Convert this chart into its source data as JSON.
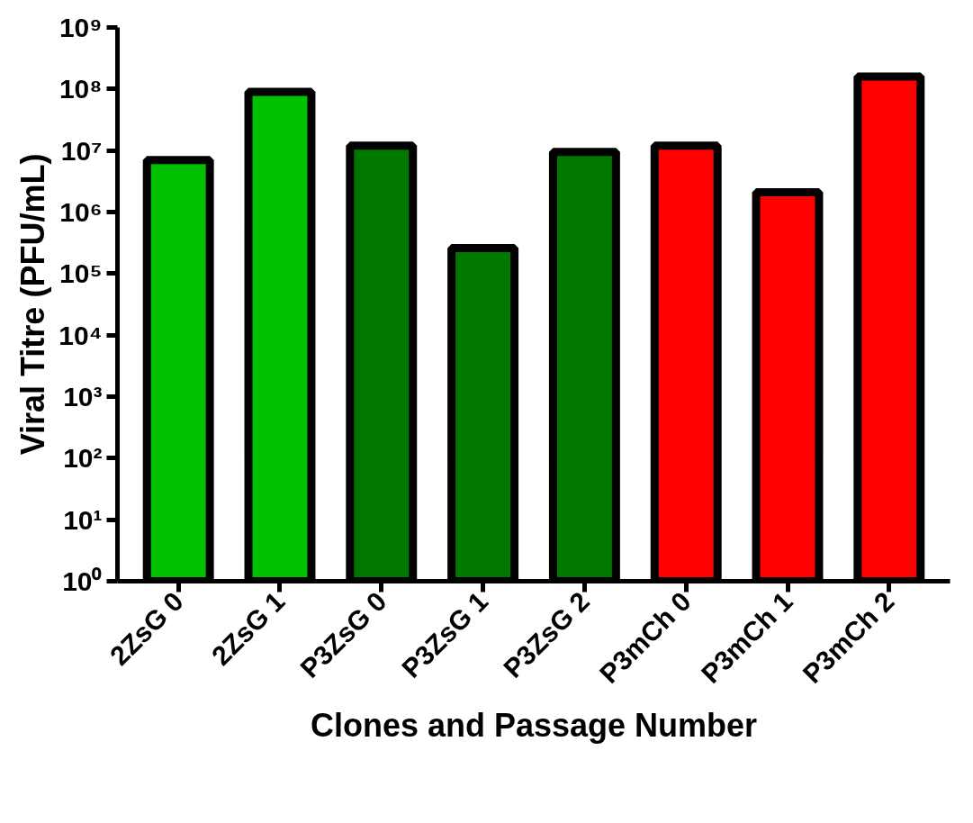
{
  "chart_data": {
    "type": "bar",
    "xlabel": "Clones and Passage Number",
    "ylabel": "Viral Titre (PFU/mL)",
    "categories": [
      "2ZsG 0",
      "2ZsG 1",
      "P3ZsG 0",
      "P3ZsG 1",
      "P3ZsG 2",
      "P3mCh 0",
      "P3mCh 1",
      "P3mCh 2"
    ],
    "values": [
      7000000,
      90000000,
      12000000,
      260000,
      9500000,
      12000000,
      2100000,
      160000000
    ],
    "colors": [
      "#00c000",
      "#00c000",
      "#007800",
      "#007800",
      "#007800",
      "#ff0000",
      "#ff0000",
      "#ff0000"
    ],
    "log": "y",
    "ylim": [
      1,
      1000000000
    ],
    "yticks": [
      {
        "value": 1,
        "label": "10⁰"
      },
      {
        "value": 10,
        "label": "10¹"
      },
      {
        "value": 100,
        "label": "10²"
      },
      {
        "value": 1000,
        "label": "10³"
      },
      {
        "value": 10000,
        "label": "10⁴"
      },
      {
        "value": 100000,
        "label": "10⁵"
      },
      {
        "value": 1000000,
        "label": "10⁶"
      },
      {
        "value": 10000000,
        "label": "10⁷"
      },
      {
        "value": 100000000,
        "label": "10⁸"
      },
      {
        "value": 1000000000,
        "label": "10⁹"
      }
    ],
    "grid": false
  }
}
